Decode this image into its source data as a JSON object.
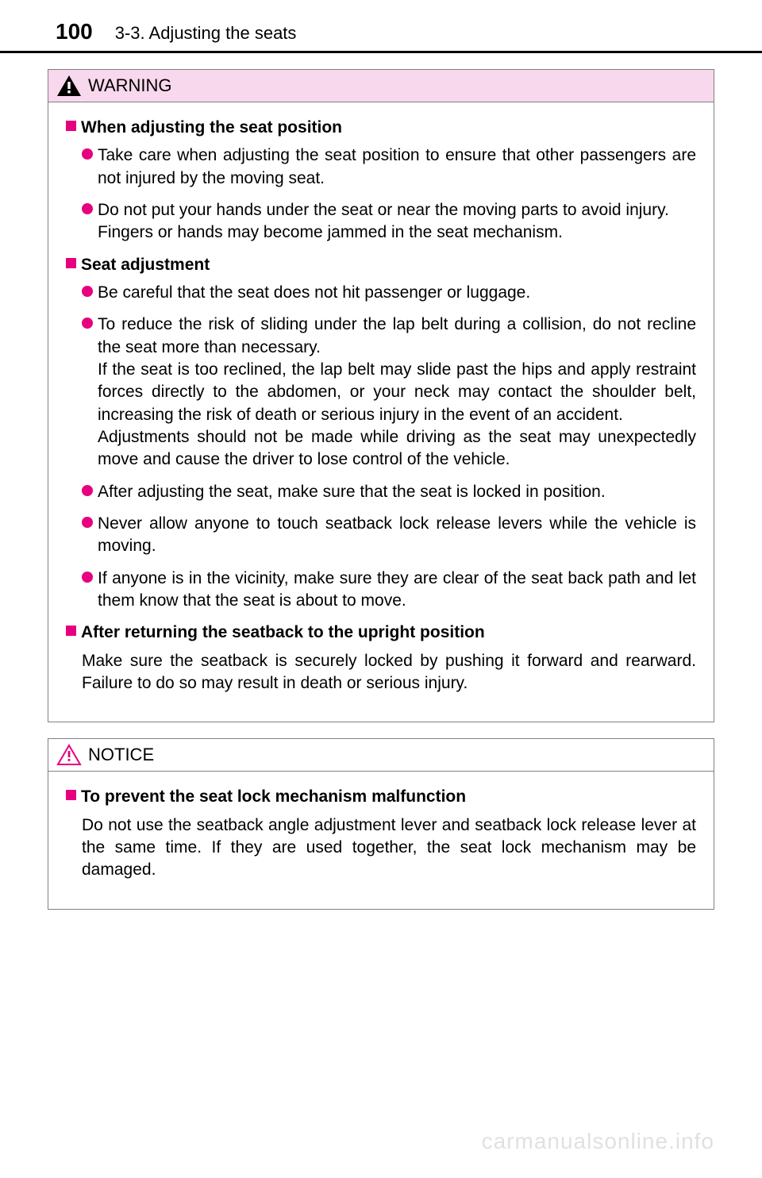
{
  "page_number": "100",
  "section_title": "3-3. Adjusting the seats",
  "warning": {
    "title": "WARNING",
    "icon_bg": "#000000",
    "icon_mark": "#ffffff",
    "header_bg": "#f8d8ec",
    "sections": [
      {
        "heading": "When adjusting the seat position",
        "bullets": [
          "Take care when adjusting the seat position to ensure that other passengers are not injured by the moving seat.",
          "Do not put your hands under the seat or near the moving parts to avoid injury.\nFingers or hands may become jammed in the seat mechanism."
        ]
      },
      {
        "heading": "Seat adjustment",
        "bullets": [
          "Be careful that the seat does not hit passenger or luggage.",
          "To reduce the risk of sliding under the lap belt during a collision, do not recline the seat more than necessary.\nIf the seat is too reclined, the lap belt may slide past the hips and apply restraint forces directly to the abdomen, or your neck may contact the shoulder belt, increasing the risk of death or serious injury in the event of an accident.\nAdjustments should not be made while driving as the seat may unexpectedly move and cause the driver to lose control of the vehicle.",
          "After adjusting the seat, make sure that the seat is locked in position.",
          "Never allow anyone to touch seatback lock release levers while the vehicle is moving.",
          "If anyone is in the vicinity, make sure they are clear of the seat back path and let them know that the seat is about to move."
        ]
      },
      {
        "heading": "After returning the seatback to the upright position",
        "para": "Make sure the seatback is securely locked by pushing it forward and rearward. Failure to do so may result in death or serious injury."
      }
    ]
  },
  "notice": {
    "title": "NOTICE",
    "icon_stroke": "#e6007e",
    "sections": [
      {
        "heading": "To prevent the seat lock mechanism malfunction",
        "para": "Do not use the seatback angle adjustment lever and seatback lock release lever at the same time. If they are used together, the seat lock mechanism may be damaged."
      }
    ]
  },
  "watermark": "carmanualsonline.info",
  "accent_color": "#e6007e"
}
